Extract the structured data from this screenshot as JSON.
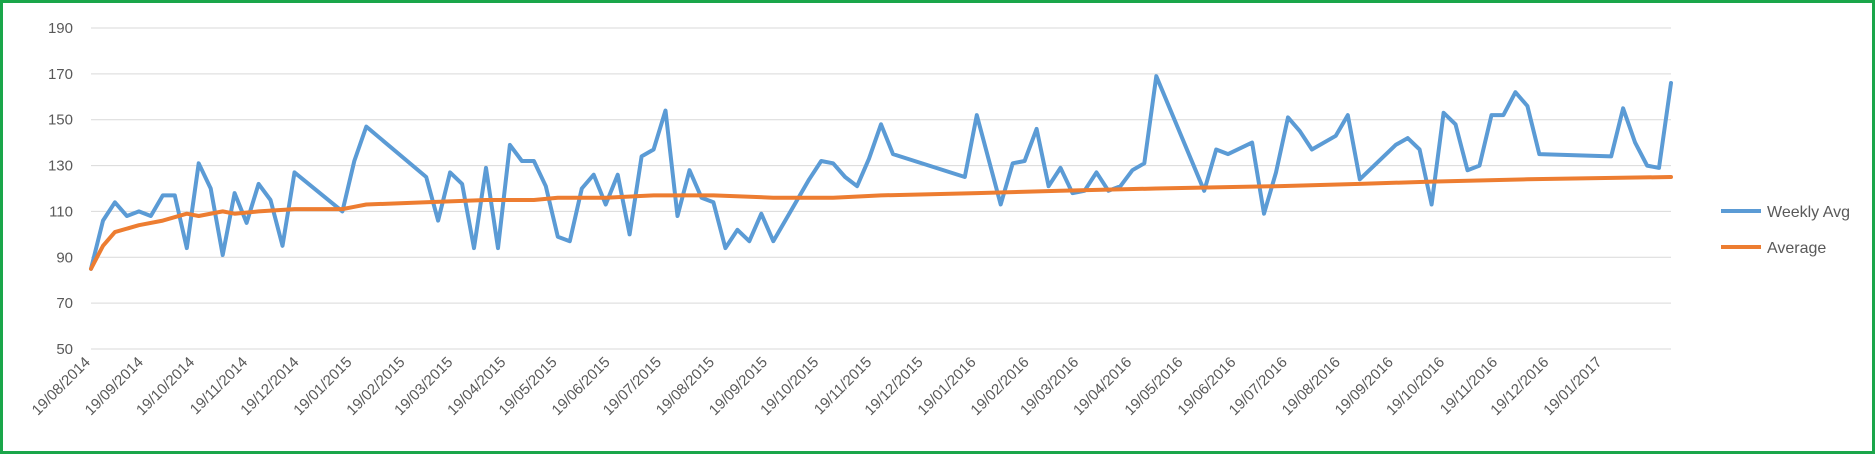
{
  "chart_data": {
    "type": "line",
    "ylim": [
      50,
      190
    ],
    "yticks": [
      50,
      70,
      90,
      110,
      130,
      150,
      170,
      190
    ],
    "xlim": [
      "2014-08-19",
      "2017-02-28"
    ],
    "x_ticks": [
      {
        "date": "2014-08-19",
        "label": "19/08/2014"
      },
      {
        "date": "2014-09-19",
        "label": "19/09/2014"
      },
      {
        "date": "2014-10-19",
        "label": "19/10/2014"
      },
      {
        "date": "2014-11-19",
        "label": "19/11/2014"
      },
      {
        "date": "2014-12-19",
        "label": "19/12/2014"
      },
      {
        "date": "2015-01-19",
        "label": "19/01/2015"
      },
      {
        "date": "2015-02-19",
        "label": "19/02/2015"
      },
      {
        "date": "2015-03-19",
        "label": "19/03/2015"
      },
      {
        "date": "2015-04-19",
        "label": "19/04/2015"
      },
      {
        "date": "2015-05-19",
        "label": "19/05/2015"
      },
      {
        "date": "2015-06-19",
        "label": "19/06/2015"
      },
      {
        "date": "2015-07-19",
        "label": "19/07/2015"
      },
      {
        "date": "2015-08-19",
        "label": "19/08/2015"
      },
      {
        "date": "2015-09-19",
        "label": "19/09/2015"
      },
      {
        "date": "2015-10-19",
        "label": "19/10/2015"
      },
      {
        "date": "2015-11-19",
        "label": "19/11/2015"
      },
      {
        "date": "2015-12-19",
        "label": "19/12/2015"
      },
      {
        "date": "2016-01-19",
        "label": "19/01/2016"
      },
      {
        "date": "2016-02-19",
        "label": "19/02/2016"
      },
      {
        "date": "2016-03-19",
        "label": "19/03/2016"
      },
      {
        "date": "2016-04-19",
        "label": "19/04/2016"
      },
      {
        "date": "2016-05-19",
        "label": "19/05/2016"
      },
      {
        "date": "2016-06-19",
        "label": "19/06/2016"
      },
      {
        "date": "2016-07-19",
        "label": "19/07/2016"
      },
      {
        "date": "2016-08-19",
        "label": "19/08/2016"
      },
      {
        "date": "2016-09-19",
        "label": "19/09/2016"
      },
      {
        "date": "2016-10-19",
        "label": "19/10/2016"
      },
      {
        "date": "2016-11-19",
        "label": "19/11/2016"
      },
      {
        "date": "2016-12-19",
        "label": "19/12/2016"
      },
      {
        "date": "2017-01-19",
        "label": "19/01/2017"
      }
    ],
    "grid": true,
    "legend_position": "right",
    "series": [
      {
        "name": "Weekly Avg",
        "color": "#5b9bd5",
        "points": [
          [
            "2014-08-19",
            85
          ],
          [
            "2014-08-26",
            106
          ],
          [
            "2014-09-02",
            114
          ],
          [
            "2014-09-09",
            108
          ],
          [
            "2014-09-16",
            110
          ],
          [
            "2014-09-23",
            108
          ],
          [
            "2014-09-30",
            117
          ],
          [
            "2014-10-07",
            117
          ],
          [
            "2014-10-14",
            94
          ],
          [
            "2014-10-21",
            131
          ],
          [
            "2014-10-28",
            120
          ],
          [
            "2014-11-04",
            91
          ],
          [
            "2014-11-11",
            118
          ],
          [
            "2014-11-18",
            105
          ],
          [
            "2014-11-25",
            122
          ],
          [
            "2014-12-02",
            115
          ],
          [
            "2014-12-09",
            95
          ],
          [
            "2014-12-16",
            127
          ],
          [
            "2015-01-13",
            110
          ],
          [
            "2015-01-20",
            132
          ],
          [
            "2015-01-27",
            147
          ],
          [
            "2015-03-03",
            125
          ],
          [
            "2015-03-10",
            106
          ],
          [
            "2015-03-17",
            127
          ],
          [
            "2015-03-24",
            122
          ],
          [
            "2015-03-31",
            94
          ],
          [
            "2015-04-07",
            129
          ],
          [
            "2015-04-14",
            94
          ],
          [
            "2015-04-21",
            139
          ],
          [
            "2015-04-28",
            132
          ],
          [
            "2015-05-05",
            132
          ],
          [
            "2015-05-12",
            121
          ],
          [
            "2015-05-19",
            99
          ],
          [
            "2015-05-26",
            97
          ],
          [
            "2015-06-02",
            120
          ],
          [
            "2015-06-09",
            126
          ],
          [
            "2015-06-16",
            113
          ],
          [
            "2015-06-23",
            126
          ],
          [
            "2015-06-30",
            100
          ],
          [
            "2015-07-07",
            134
          ],
          [
            "2015-07-14",
            137
          ],
          [
            "2015-07-21",
            154
          ],
          [
            "2015-07-28",
            108
          ],
          [
            "2015-08-04",
            128
          ],
          [
            "2015-08-11",
            116
          ],
          [
            "2015-08-18",
            114
          ],
          [
            "2015-08-25",
            94
          ],
          [
            "2015-09-01",
            102
          ],
          [
            "2015-09-08",
            97
          ],
          [
            "2015-09-15",
            109
          ],
          [
            "2015-09-22",
            97
          ],
          [
            "2015-10-13",
            124
          ],
          [
            "2015-10-20",
            132
          ],
          [
            "2015-10-27",
            131
          ],
          [
            "2015-11-03",
            125
          ],
          [
            "2015-11-10",
            121
          ],
          [
            "2015-11-17",
            133
          ],
          [
            "2015-11-24",
            148
          ],
          [
            "2015-12-01",
            135
          ],
          [
            "2016-01-12",
            125
          ],
          [
            "2016-01-19",
            152
          ],
          [
            "2016-02-02",
            113
          ],
          [
            "2016-02-09",
            131
          ],
          [
            "2016-02-16",
            132
          ],
          [
            "2016-02-23",
            146
          ],
          [
            "2016-03-01",
            121
          ],
          [
            "2016-03-08",
            129
          ],
          [
            "2016-03-15",
            118
          ],
          [
            "2016-03-22",
            119
          ],
          [
            "2016-03-29",
            127
          ],
          [
            "2016-04-05",
            119
          ],
          [
            "2016-04-12",
            121
          ],
          [
            "2016-04-19",
            128
          ],
          [
            "2016-04-26",
            131
          ],
          [
            "2016-05-03",
            169
          ],
          [
            "2016-05-31",
            119
          ],
          [
            "2016-06-07",
            137
          ],
          [
            "2016-06-14",
            135
          ],
          [
            "2016-06-28",
            140
          ],
          [
            "2016-07-05",
            109
          ],
          [
            "2016-07-12",
            127
          ],
          [
            "2016-07-19",
            151
          ],
          [
            "2016-07-26",
            145
          ],
          [
            "2016-08-02",
            137
          ],
          [
            "2016-08-16",
            143
          ],
          [
            "2016-08-23",
            152
          ],
          [
            "2016-08-30",
            124
          ],
          [
            "2016-09-20",
            139
          ],
          [
            "2016-09-27",
            142
          ],
          [
            "2016-10-04",
            137
          ],
          [
            "2016-10-11",
            113
          ],
          [
            "2016-10-18",
            153
          ],
          [
            "2016-10-25",
            148
          ],
          [
            "2016-11-01",
            128
          ],
          [
            "2016-11-08",
            130
          ],
          [
            "2016-11-15",
            152
          ],
          [
            "2016-11-22",
            152
          ],
          [
            "2016-11-29",
            162
          ],
          [
            "2016-12-06",
            156
          ],
          [
            "2016-12-13",
            135
          ],
          [
            "2017-01-24",
            134
          ],
          [
            "2017-01-31",
            155
          ],
          [
            "2017-02-07",
            140
          ],
          [
            "2017-02-14",
            130
          ],
          [
            "2017-02-21",
            129
          ],
          [
            "2017-02-28",
            166
          ]
        ]
      },
      {
        "name": "Average",
        "color": "#ed7d31",
        "points": [
          [
            "2014-08-19",
            85
          ],
          [
            "2014-08-26",
            95
          ],
          [
            "2014-09-02",
            101
          ],
          [
            "2014-09-16",
            104
          ],
          [
            "2014-09-30",
            106
          ],
          [
            "2014-10-14",
            109
          ],
          [
            "2014-10-21",
            108
          ],
          [
            "2014-11-04",
            110
          ],
          [
            "2014-11-11",
            109
          ],
          [
            "2014-11-25",
            110
          ],
          [
            "2014-12-16",
            111
          ],
          [
            "2015-01-13",
            111
          ],
          [
            "2015-01-20",
            112
          ],
          [
            "2015-01-27",
            113
          ],
          [
            "2015-03-03",
            114
          ],
          [
            "2015-04-07",
            115
          ],
          [
            "2015-05-05",
            115
          ],
          [
            "2015-05-19",
            116
          ],
          [
            "2015-06-16",
            116
          ],
          [
            "2015-07-14",
            117
          ],
          [
            "2015-08-18",
            117
          ],
          [
            "2015-09-22",
            116
          ],
          [
            "2015-10-27",
            116
          ],
          [
            "2015-11-24",
            117
          ],
          [
            "2016-01-19",
            118
          ],
          [
            "2016-03-08",
            119
          ],
          [
            "2016-05-03",
            120
          ],
          [
            "2016-07-12",
            121
          ],
          [
            "2016-08-30",
            122
          ],
          [
            "2016-10-11",
            123
          ],
          [
            "2016-12-06",
            124
          ],
          [
            "2017-02-28",
            125
          ]
        ]
      }
    ]
  }
}
